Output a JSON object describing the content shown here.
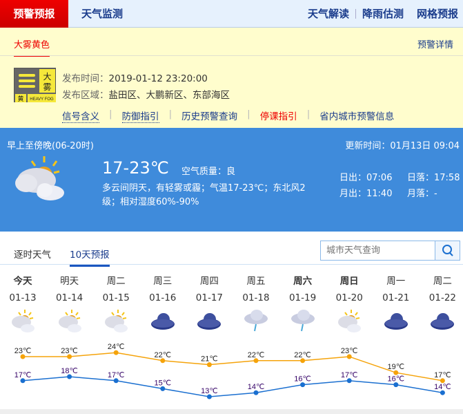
{
  "topnav": {
    "active": "预警预报",
    "items": [
      "天气监测",
      "天气解读",
      "降雨估测",
      "网格预报"
    ]
  },
  "warning": {
    "tab": "大雾黄色",
    "detail_link": "预警详情",
    "badge": {
      "big": "大雾",
      "level": "黄",
      "en": "HEAVY FOG",
      "color": "#f5e83a"
    },
    "time_label": "发布时间：",
    "time": "2019-01-12 23:20:00",
    "area_label": "发布区域：",
    "area": "盐田区、大鹏新区、东部海区",
    "links": [
      {
        "label": "信号含义",
        "color": "#1a3c8c"
      },
      {
        "label": "防御指引",
        "color": "#1a3c8c"
      },
      {
        "label": "历史预警查询",
        "color": "#1a3c8c"
      },
      {
        "label": "停课指引",
        "color": "#e00"
      },
      {
        "label": "省内城市预警信息",
        "color": "#1a3c8c"
      }
    ]
  },
  "today": {
    "period": "早上至傍晚(06-20时)",
    "updated": "更新时间：01月13日 09:04",
    "temp": "17-23℃",
    "aq_label": "空气质量：",
    "aq": "良",
    "desc1": "多云间阴天，有轻雾或霾；气温17-23℃；东北风2",
    "desc2": "级；相对湿度60%-90%",
    "sunrise": "日出：07:06",
    "sunset": "日落：17:58",
    "moonrise": "月出：11:40",
    "moonset": "月落：-",
    "icon": "partly-cloudy"
  },
  "tabs": {
    "hourly": "逐时天气",
    "ten_day": "10天预报",
    "search_placeholder": "城市天气查询"
  },
  "chart_data": {
    "type": "line",
    "categories": [
      "01-13",
      "01-14",
      "01-15",
      "01-16",
      "01-17",
      "01-18",
      "01-19",
      "01-20",
      "01-21",
      "01-22"
    ],
    "weekdays": [
      "今天",
      "明天",
      "周二",
      "周三",
      "周四",
      "周五",
      "周六",
      "周日",
      "周一",
      "周二"
    ],
    "bold": [
      true,
      false,
      false,
      false,
      false,
      false,
      true,
      true,
      false,
      false
    ],
    "icons": [
      "partly-cloudy",
      "partly-cloudy",
      "partly-cloudy",
      "cloudy",
      "cloudy",
      "rain",
      "rain",
      "partly-cloudy",
      "cloudy",
      "cloudy"
    ],
    "unit": "℃",
    "series": [
      {
        "values": [
          23,
          23,
          24,
          22,
          21,
          22,
          22,
          23,
          19,
          17
        ],
        "color": "#f5a30a"
      },
      {
        "values": [
          17,
          18,
          17,
          15,
          13,
          14,
          16,
          17,
          16,
          14
        ],
        "color": "#1a6fd0"
      }
    ]
  }
}
